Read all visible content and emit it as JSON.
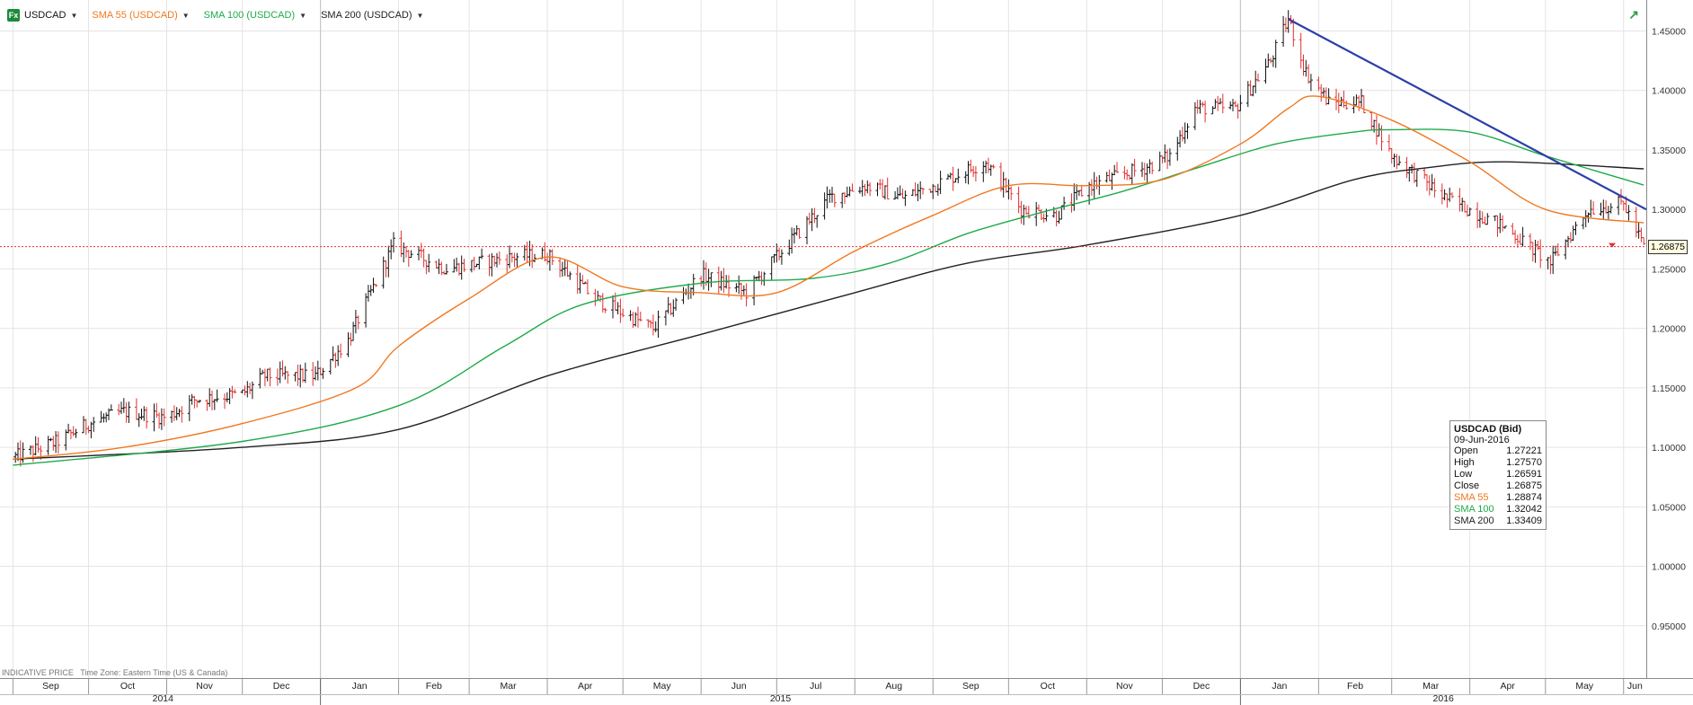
{
  "legend": {
    "symbol_badge": "Fx",
    "symbol": "USDCAD",
    "sma55": "SMA 55 (USDCAD)",
    "sma100": "SMA 100 (USDCAD)",
    "sma200": "SMA 200 (USDCAD)"
  },
  "footer": {
    "indicative": "INDICATIVE PRICE",
    "timezone": "Time Zone: Eastern Time (US & Canada)"
  },
  "last_price_label": "1.26875",
  "tooltip": {
    "title": "USDCAD (Bid)",
    "date": "09-Jun-2016",
    "rows": [
      {
        "k": "Open",
        "v": "1.27221"
      },
      {
        "k": "High",
        "v": "1.27570"
      },
      {
        "k": "Low",
        "v": "1.26591"
      },
      {
        "k": "Close",
        "v": "1.26875"
      },
      {
        "k": "SMA 55",
        "v": "1.28874"
      },
      {
        "k": "SMA 100",
        "v": "1.32042"
      },
      {
        "k": "SMA 200",
        "v": "1.33409"
      }
    ]
  },
  "colors": {
    "up_bar": "#111111",
    "down_bar": "#e23030",
    "sma55": "#f07820",
    "sma100": "#1faa4a",
    "sma200": "#222222",
    "trendline": "#2b3fa8",
    "last_price_line": "#e23030",
    "grid": "#e4e4e4"
  },
  "chart_data": {
    "type": "ohlc",
    "y_axis": {
      "min": 0.9,
      "max": 1.47,
      "ticks": [
        "1.45000",
        "1.40000",
        "1.35000",
        "1.30000",
        "1.25000",
        "1.20000",
        "1.15000",
        "1.10000",
        "1.05000",
        "1.00000",
        "0.95000"
      ]
    },
    "x_axis": {
      "start": "2014-08-29",
      "end": "2016-06-10",
      "months": [
        {
          "label": "Sep",
          "start": "2014-09-01"
        },
        {
          "label": "Oct",
          "start": "2014-10-01"
        },
        {
          "label": "Nov",
          "start": "2014-11-01"
        },
        {
          "label": "Dec",
          "start": "2014-12-01"
        },
        {
          "label": "Jan",
          "start": "2015-01-01"
        },
        {
          "label": "Feb",
          "start": "2015-02-01"
        },
        {
          "label": "Mar",
          "start": "2015-03-01"
        },
        {
          "label": "Apr",
          "start": "2015-04-01"
        },
        {
          "label": "May",
          "start": "2015-05-01"
        },
        {
          "label": "Jun",
          "start": "2015-06-01"
        },
        {
          "label": "Jul",
          "start": "2015-07-01"
        },
        {
          "label": "Aug",
          "start": "2015-08-01"
        },
        {
          "label": "Sep",
          "start": "2015-09-01"
        },
        {
          "label": "Oct",
          "start": "2015-10-01"
        },
        {
          "label": "Nov",
          "start": "2015-11-01"
        },
        {
          "label": "Dec",
          "start": "2015-12-01"
        },
        {
          "label": "Jan",
          "start": "2016-01-01"
        },
        {
          "label": "Feb",
          "start": "2016-02-01"
        },
        {
          "label": "Mar",
          "start": "2016-03-01"
        },
        {
          "label": "Apr",
          "start": "2016-04-01"
        },
        {
          "label": "May",
          "start": "2016-05-01"
        },
        {
          "label": "Jun",
          "start": "2016-06-01"
        }
      ],
      "years": [
        {
          "label": "2014",
          "start": "2014-08-29"
        },
        {
          "label": "2015",
          "start": "2015-01-01"
        },
        {
          "label": "2016",
          "start": "2016-01-01"
        }
      ]
    },
    "close_path": [
      [
        "2014-09-02",
        1.092
      ],
      [
        "2014-09-19",
        1.105
      ],
      [
        "2014-10-01",
        1.12
      ],
      [
        "2014-10-15",
        1.13
      ],
      [
        "2014-11-01",
        1.125
      ],
      [
        "2014-11-12",
        1.14
      ],
      [
        "2014-12-01",
        1.145
      ],
      [
        "2014-12-10",
        1.16
      ],
      [
        "2014-12-30",
        1.16
      ],
      [
        "2015-01-12",
        1.19
      ],
      [
        "2015-01-30",
        1.27
      ],
      [
        "2015-02-20",
        1.25
      ],
      [
        "2015-03-18",
        1.26
      ],
      [
        "2015-04-01",
        1.262
      ],
      [
        "2015-04-20",
        1.225
      ],
      [
        "2015-05-13",
        1.2
      ],
      [
        "2015-06-01",
        1.245
      ],
      [
        "2015-06-19",
        1.23
      ],
      [
        "2015-07-01",
        1.26
      ],
      [
        "2015-07-22",
        1.31
      ],
      [
        "2015-08-05",
        1.32
      ],
      [
        "2015-08-20",
        1.31
      ],
      [
        "2015-09-01",
        1.32
      ],
      [
        "2015-09-22",
        1.34
      ],
      [
        "2015-10-06",
        1.3
      ],
      [
        "2015-10-20",
        1.295
      ],
      [
        "2015-11-02",
        1.32
      ],
      [
        "2015-11-24",
        1.335
      ],
      [
        "2015-12-04",
        1.345
      ],
      [
        "2015-12-14",
        1.385
      ],
      [
        "2015-12-30",
        1.385
      ],
      [
        "2016-01-13",
        1.425
      ],
      [
        "2016-01-20",
        1.46
      ],
      [
        "2016-01-27",
        1.415
      ],
      [
        "2016-02-05",
        1.39
      ],
      [
        "2016-02-18",
        1.39
      ],
      [
        "2016-03-01",
        1.345
      ],
      [
        "2016-03-22",
        1.31
      ],
      [
        "2016-04-15",
        1.285
      ],
      [
        "2016-05-03",
        1.255
      ],
      [
        "2016-05-18",
        1.3
      ],
      [
        "2016-06-01",
        1.305
      ],
      [
        "2016-06-09",
        1.26875
      ]
    ],
    "sma55": [
      [
        "2014-09-01",
        1.09
      ],
      [
        "2014-10-15",
        1.1
      ],
      [
        "2014-12-01",
        1.12
      ],
      [
        "2015-01-15",
        1.15
      ],
      [
        "2015-02-01",
        1.185
      ],
      [
        "2015-03-01",
        1.225
      ],
      [
        "2015-04-01",
        1.26
      ],
      [
        "2015-05-01",
        1.235
      ],
      [
        "2015-06-01",
        1.23
      ],
      [
        "2015-07-01",
        1.23
      ],
      [
        "2015-08-01",
        1.265
      ],
      [
        "2015-09-01",
        1.295
      ],
      [
        "2015-10-01",
        1.32
      ],
      [
        "2015-11-01",
        1.32
      ],
      [
        "2015-12-01",
        1.325
      ],
      [
        "2016-01-01",
        1.355
      ],
      [
        "2016-01-20",
        1.385
      ],
      [
        "2016-02-01",
        1.395
      ],
      [
        "2016-03-01",
        1.375
      ],
      [
        "2016-04-01",
        1.34
      ],
      [
        "2016-05-01",
        1.3
      ],
      [
        "2016-06-09",
        1.28874
      ]
    ],
    "sma100": [
      [
        "2014-09-01",
        1.085
      ],
      [
        "2014-12-01",
        1.105
      ],
      [
        "2015-02-01",
        1.135
      ],
      [
        "2015-03-15",
        1.185
      ],
      [
        "2015-04-15",
        1.22
      ],
      [
        "2015-06-01",
        1.238
      ],
      [
        "2015-07-15",
        1.242
      ],
      [
        "2015-08-15",
        1.255
      ],
      [
        "2015-09-15",
        1.28
      ],
      [
        "2015-10-15",
        1.298
      ],
      [
        "2015-11-15",
        1.315
      ],
      [
        "2015-12-15",
        1.335
      ],
      [
        "2016-01-15",
        1.355
      ],
      [
        "2016-02-15",
        1.365
      ],
      [
        "2016-03-01",
        1.367
      ],
      [
        "2016-04-01",
        1.365
      ],
      [
        "2016-05-01",
        1.345
      ],
      [
        "2016-06-09",
        1.32042
      ]
    ],
    "sma200": [
      [
        "2014-09-01",
        1.09
      ],
      [
        "2014-12-01",
        1.1
      ],
      [
        "2015-02-01",
        1.115
      ],
      [
        "2015-04-01",
        1.16
      ],
      [
        "2015-06-01",
        1.195
      ],
      [
        "2015-08-01",
        1.23
      ],
      [
        "2015-09-15",
        1.255
      ],
      [
        "2015-11-01",
        1.27
      ],
      [
        "2016-01-01",
        1.295
      ],
      [
        "2016-02-15",
        1.325
      ],
      [
        "2016-03-15",
        1.335
      ],
      [
        "2016-04-15",
        1.34
      ],
      [
        "2016-06-09",
        1.33409
      ]
    ],
    "trendline": [
      [
        "2016-01-20",
        1.46
      ],
      [
        "2016-06-10",
        1.3
      ]
    ],
    "last_price": 1.26875
  }
}
